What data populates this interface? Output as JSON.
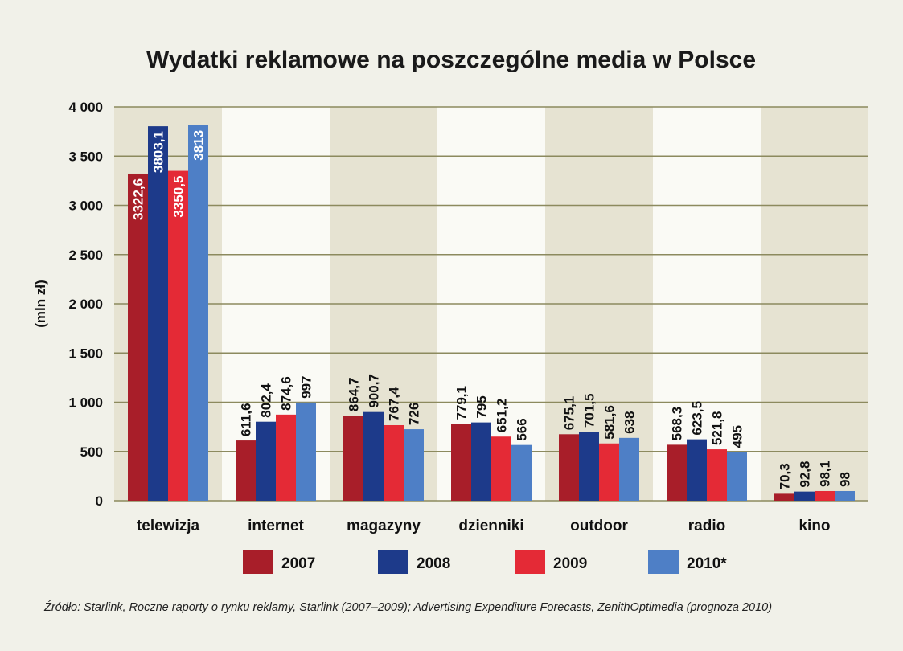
{
  "chart_data": {
    "type": "bar",
    "title": "Wydatki reklamowe na poszczególne media w Polsce",
    "ylabel": "(mln zł)",
    "xlabel": "",
    "ylim": [
      0,
      4000
    ],
    "yticks": [
      0,
      500,
      1000,
      1500,
      2000,
      2500,
      3000,
      3500,
      4000
    ],
    "ytick_labels": [
      "0",
      "500",
      "1 000",
      "1 500",
      "2 000",
      "2 500",
      "3 000",
      "3 500",
      "4 000"
    ],
    "categories": [
      "telewizja",
      "internet",
      "magazyny",
      "dzienniki",
      "outdoor",
      "radio",
      "kino"
    ],
    "series": [
      {
        "name": "2007",
        "color": "#a81e29",
        "values": [
          3322.6,
          611.6,
          864.7,
          779.1,
          675.1,
          568.3,
          70.3
        ],
        "labels": [
          "3322,6",
          "611,6",
          "864,7",
          "779,1",
          "675,1",
          "568,3",
          "70,3"
        ]
      },
      {
        "name": "2008",
        "color": "#1d3a8a",
        "values": [
          3803.1,
          802.4,
          900.7,
          795,
          701.5,
          623.5,
          92.8
        ],
        "labels": [
          "3803,1",
          "802,4",
          "900,7",
          "795",
          "701,5",
          "623,5",
          "92,8"
        ]
      },
      {
        "name": "2009",
        "color": "#e42a36",
        "values": [
          3350.5,
          874.6,
          767.4,
          651.2,
          581.6,
          521.8,
          98.1
        ],
        "labels": [
          "3350,5",
          "874,6",
          "767,4",
          "651,2",
          "581,6",
          "521,8",
          "98,1"
        ]
      },
      {
        "name": "2010*",
        "color": "#4e7fc6",
        "values": [
          3813,
          997,
          726,
          566,
          638,
          495,
          98
        ],
        "labels": [
          "3813",
          "997",
          "726",
          "566",
          "638",
          "495",
          "98"
        ]
      }
    ],
    "legend": "bottom",
    "grid": true
  },
  "colors": {
    "background": "#f1f1e9",
    "band_dark": "#e6e3d2",
    "band_light": "#fafaf5",
    "gridline": "#8c8a5e"
  },
  "source": "Źródło: Starlink, Roczne raporty o rynku reklamy, Starlink (2007–2009); Advertising Expenditure Forecasts, ZenithOptimedia (prognoza 2010)"
}
